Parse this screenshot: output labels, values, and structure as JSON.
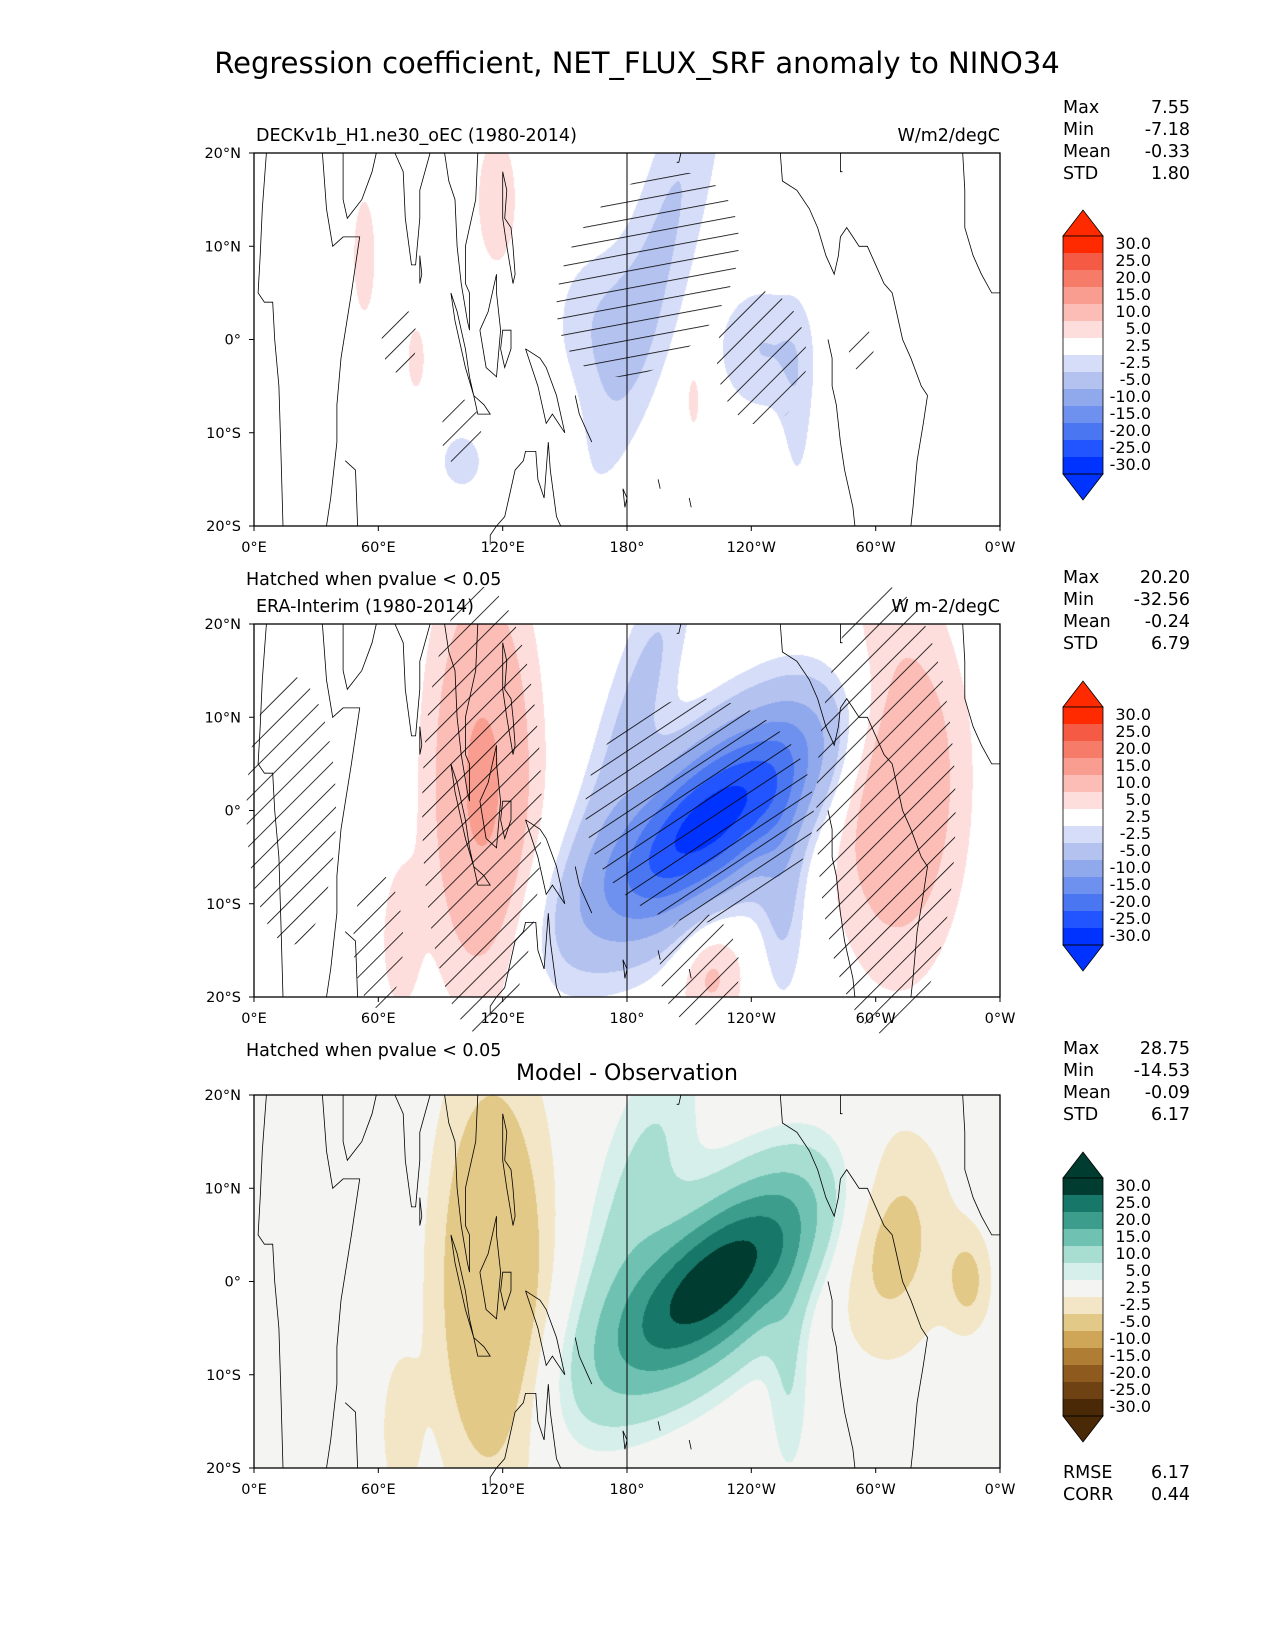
{
  "title": "Regression coefficient, NET_FLUX_SRF anomaly to NINO34",
  "x_ticks": [
    "0°E",
    "60°E",
    "120°E",
    "180°",
    "120°W",
    "60°W",
    "0°W"
  ],
  "y_ticks": [
    "20°N",
    "10°N",
    "0°",
    "10°S",
    "20°S"
  ],
  "stat_labels": [
    "Max",
    "Min",
    "Mean",
    "STD"
  ],
  "colorbar_labels": [
    "30.0",
    "25.0",
    "20.0",
    "15.0",
    "10.0",
    "5.0",
    "2.5",
    "-2.5",
    "-5.0",
    "-10.0",
    "-15.0",
    "-20.0",
    "-25.0",
    "-30.0"
  ],
  "hatch_note": "Hatched when pvalue < 0.05",
  "diff_title": "Model - Observation",
  "metrics": {
    "rmse_label": "RMSE",
    "rmse_value": "6.17",
    "corr_label": "CORR",
    "corr_value": "0.44"
  },
  "colormaps": {
    "redblue": [
      "#0033ff",
      "#2255ff",
      "#4a76f2",
      "#6e90ee",
      "#90a8ec",
      "#b4c2f0",
      "#d6ddf8",
      "#ffffff",
      "#fddedd",
      "#fbbdb6",
      "#f89d8f",
      "#f67b69",
      "#f45a44",
      "#ff2a00"
    ],
    "brbg": [
      "#4a2a06",
      "#6e4212",
      "#8f5a1e",
      "#b07d34",
      "#cfa658",
      "#e2c988",
      "#f2e6c6",
      "#f4f4f2",
      "#d6efea",
      "#a8ddd2",
      "#6fc2b2",
      "#3c9d8d",
      "#17786a",
      "#003c30"
    ]
  },
  "chart_data": [
    {
      "type": "contour_map",
      "name": "model",
      "left_title": "DECKv1b_H1.ne30_oEC (1980-2014)",
      "units": "W/m2/degC",
      "stats": {
        "max": "7.55",
        "min": "-7.18",
        "mean": "-0.33",
        "std": "1.80"
      },
      "colormap": "redblue",
      "levels": [
        -30.0,
        -25.0,
        -20.0,
        -15.0,
        -10.0,
        -5.0,
        -2.5,
        2.5,
        5.0,
        10.0,
        15.0,
        20.0,
        25.0,
        30.0
      ],
      "xlim": [
        0,
        360
      ],
      "ylim": [
        -20,
        20
      ],
      "anomalies": [
        {
          "lon": 195,
          "lat": 9,
          "slon": 30,
          "slat": 8,
          "amp": -5.5,
          "rot": -0.6
        },
        {
          "lon": 165,
          "lat": 2,
          "slon": 16,
          "slat": 6,
          "amp": -4.0,
          "rot": 0
        },
        {
          "lon": 245,
          "lat": -1,
          "slon": 16,
          "slat": 5,
          "amp": -5.0,
          "rot": 0
        },
        {
          "lon": 262,
          "lat": -8,
          "slon": 6,
          "slat": 8,
          "amp": -3.0,
          "rot": 0
        },
        {
          "lon": 100,
          "lat": -13,
          "slon": 10,
          "slat": 3,
          "amp": -3.5,
          "rot": 0
        },
        {
          "lon": 117,
          "lat": 15,
          "slon": 8,
          "slat": 6,
          "amp": 4.5,
          "rot": 0
        },
        {
          "lon": 53,
          "lat": 9,
          "slon": 5,
          "slat": 6,
          "amp": 4.0,
          "rot": 0
        },
        {
          "lon": 78,
          "lat": -2,
          "slon": 6,
          "slat": 5,
          "amp": 3.0,
          "rot": 0
        },
        {
          "lon": 212,
          "lat": -6,
          "slon": 4,
          "slat": 4,
          "amp": 3.5,
          "rot": 0
        }
      ],
      "hatch_regions": [
        {
          "lon": 190,
          "lat": 7,
          "slon": 32,
          "slat": 10,
          "rot": -0.6
        },
        {
          "lon": 245,
          "lat": -2,
          "slon": 18,
          "slat": 6,
          "rot": 0
        },
        {
          "lon": 100,
          "lat": -10,
          "slon": 8,
          "slat": 3,
          "rot": 0
        },
        {
          "lon": 70,
          "lat": 0,
          "slon": 7,
          "slat": 3,
          "rot": 0
        },
        {
          "lon": 293,
          "lat": -1,
          "slon": 5,
          "slat": 2,
          "rot": 0
        }
      ]
    },
    {
      "type": "contour_map",
      "name": "observation",
      "left_title": "ERA-Interim (1980-2014)",
      "units": "W m-2/degC",
      "stats": {
        "max": "20.20",
        "min": "-32.56",
        "mean": "-0.24",
        "std": "6.79"
      },
      "colormap": "redblue",
      "levels": [
        -30.0,
        -25.0,
        -20.0,
        -15.0,
        -10.0,
        -5.0,
        -2.5,
        2.5,
        5.0,
        10.0,
        15.0,
        20.0,
        25.0,
        30.0
      ],
      "xlim": [
        0,
        360
      ],
      "ylim": [
        -20,
        20
      ],
      "anomalies": [
        {
          "lon": 220,
          "lat": -1,
          "slon": 40,
          "slat": 6,
          "amp": -33,
          "rot": -0.15
        },
        {
          "lon": 185,
          "lat": 12,
          "slon": 22,
          "slat": 6,
          "amp": -6,
          "rot": -0.5
        },
        {
          "lon": 255,
          "lat": -9,
          "slon": 8,
          "slat": 8,
          "amp": -6,
          "rot": 0
        },
        {
          "lon": 110,
          "lat": 3,
          "slon": 18,
          "slat": 16,
          "amp": 11,
          "rot": 0
        },
        {
          "lon": 310,
          "lat": 4,
          "slon": 22,
          "slat": 14,
          "amp": 10,
          "rot": 0
        },
        {
          "lon": 70,
          "lat": -14,
          "slon": 7,
          "slat": 6,
          "amp": 4,
          "rot": 0
        },
        {
          "lon": 220,
          "lat": -17,
          "slon": 12,
          "slat": 5,
          "amp": 6,
          "rot": 0
        }
      ],
      "hatch_regions": [
        {
          "lon": 215,
          "lat": 0,
          "slon": 46,
          "slat": 10,
          "rot": -0.2
        },
        {
          "lon": 110,
          "lat": 0,
          "slon": 24,
          "slat": 20,
          "rot": 0
        },
        {
          "lon": 305,
          "lat": 0,
          "slon": 28,
          "slat": 20,
          "rot": 0
        },
        {
          "lon": 18,
          "lat": 0,
          "slon": 18,
          "slat": 12,
          "rot": 0
        },
        {
          "lon": 60,
          "lat": -14,
          "slon": 10,
          "slat": 6,
          "rot": 0
        },
        {
          "lon": 215,
          "lat": -17,
          "slon": 16,
          "slat": 5,
          "rot": 0
        }
      ]
    },
    {
      "type": "contour_map",
      "name": "difference",
      "left_title": "",
      "units": "",
      "stats": {
        "max": "28.75",
        "min": "-14.53",
        "mean": "-0.09",
        "std": "6.17"
      },
      "colormap": "brbg",
      "levels": [
        -30.0,
        -25.0,
        -20.0,
        -15.0,
        -10.0,
        -5.0,
        -2.5,
        2.5,
        5.0,
        10.0,
        15.0,
        20.0,
        25.0,
        30.0
      ],
      "xlim": [
        0,
        360
      ],
      "ylim": [
        -20,
        20
      ],
      "anomalies": [
        {
          "lon": 222,
          "lat": 0,
          "slon": 38,
          "slat": 6,
          "amp": 29,
          "rot": -0.15
        },
        {
          "lon": 185,
          "lat": 10,
          "slon": 22,
          "slat": 8,
          "amp": 6,
          "rot": -0.4
        },
        {
          "lon": 258,
          "lat": -10,
          "slon": 7,
          "slat": 8,
          "amp": 5,
          "rot": 0
        },
        {
          "lon": 115,
          "lat": 0,
          "slon": 20,
          "slat": 17,
          "amp": -10,
          "rot": 0
        },
        {
          "lon": 305,
          "lat": 6,
          "slon": 22,
          "slat": 10,
          "amp": -7,
          "rot": 0
        },
        {
          "lon": 345,
          "lat": 0,
          "slon": 8,
          "slat": 4,
          "amp": -5,
          "rot": 0
        },
        {
          "lon": 70,
          "lat": -16,
          "slon": 7,
          "slat": 6,
          "amp": -4,
          "rot": 0
        }
      ],
      "hatch_regions": []
    }
  ]
}
